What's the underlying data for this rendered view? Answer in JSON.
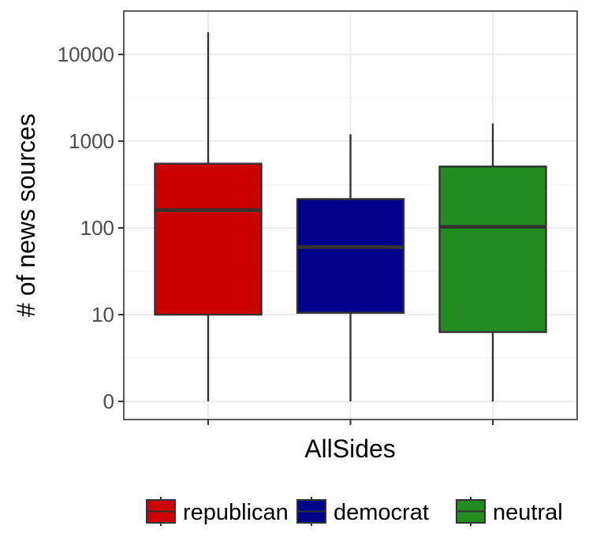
{
  "chart_data": {
    "type": "boxplot",
    "xlabel": "AllSides",
    "ylabel": "# of news sources",
    "yscale": "log10 (0 shown at bottom)",
    "ytick_values": [
      0,
      10,
      100,
      1000,
      10000
    ],
    "ytick_labels": [
      "0",
      "10",
      "100",
      "1000",
      "10000"
    ],
    "grid": true,
    "legend_position": "bottom",
    "series": [
      {
        "name": "republican",
        "color": "#cc0000",
        "whisker_low": 0,
        "q1": 10,
        "median": 160,
        "q3": 550,
        "whisker_high": 18000
      },
      {
        "name": "democrat",
        "color": "#00008b",
        "whisker_low": 0,
        "q1": 10.5,
        "median": 60,
        "q3": 215,
        "whisker_high": 1200
      },
      {
        "name": "neutral",
        "color": "#228b22",
        "whisker_low": 0,
        "q1": 6.3,
        "median": 103,
        "q3": 510,
        "whisker_high": 1600
      }
    ]
  }
}
